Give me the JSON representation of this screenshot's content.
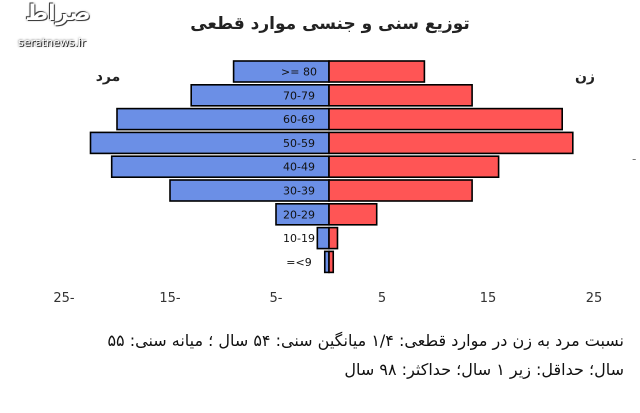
{
  "watermark": {
    "name": "صراط",
    "url": "seratnews.ir"
  },
  "chart_data": {
    "type": "bar",
    "title": "توزیع سنی و جنسی موارد قطعی",
    "categories": [
      ">= 80",
      "70-79",
      "60-69",
      "50-59",
      "40-49",
      "30-39",
      "20-29",
      "10-19",
      "=<9"
    ],
    "series": [
      {
        "name": "مرد",
        "values": [
          9,
          13,
          20,
          22.5,
          20.5,
          15,
          5,
          1.1,
          0.4
        ],
        "color": "#6b8fe6",
        "side": "left"
      },
      {
        "name": "زن",
        "values": [
          9,
          13.5,
          22,
          23,
          16,
          13.5,
          4.5,
          0.8,
          0.4
        ],
        "color": "#ff5555",
        "side": "right"
      }
    ],
    "xlim": [
      -28,
      28
    ],
    "xticks": [
      {
        "value": -25,
        "label": "25-"
      },
      {
        "value": -15,
        "label": "15-"
      },
      {
        "value": -5,
        "label": "5-"
      },
      {
        "value": 5,
        "label": "5"
      },
      {
        "value": 15,
        "label": "15"
      },
      {
        "value": 25,
        "label": "25"
      }
    ],
    "bar_outline": "#000000",
    "grid": false,
    "legend": "series names printed at top-left and top-right corners of the plot"
  },
  "caption": {
    "line1": "نسبت مرد به زن در موارد قطعی: ۱/۴  میانگین سنی: ۵۴ سال ؛ میانه سنی: ۵۵",
    "line2": "سال؛ حداقل: زیر ۱ سال؛ حداکثر: ۹۸ سال"
  },
  "stray_mark": "-"
}
